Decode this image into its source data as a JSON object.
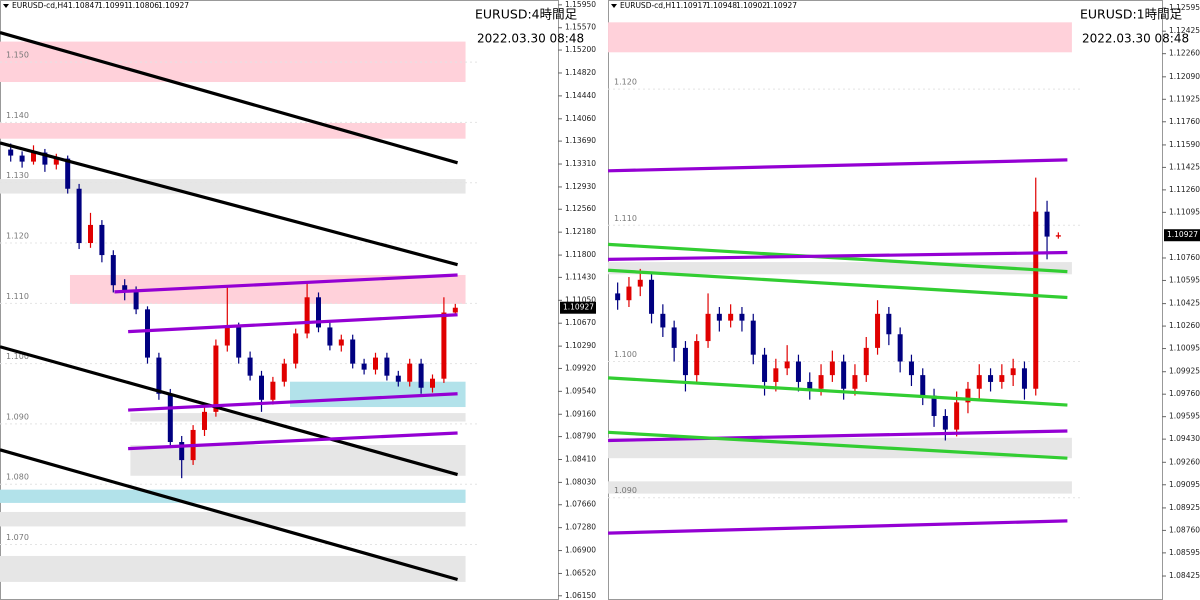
{
  "chart_data": [
    {
      "type": "candlestick",
      "symbol": "EURUSD-cd,H4",
      "title": "EURUSD:4時間足",
      "subtitle": "2022.03.30 08:48",
      "up_color": "#e00000",
      "down_color": "#000080",
      "ylim": [
        1.1603,
        1.0608
      ],
      "yticks": [
        {
          "value": 1.1595,
          "label": "1.15950"
        },
        {
          "value": 1.1557,
          "label": "1.15570"
        },
        {
          "value": 1.152,
          "label": "1.15200"
        },
        {
          "value": 1.1482,
          "label": "1.14820"
        },
        {
          "value": 1.1444,
          "label": "1.14440"
        },
        {
          "value": 1.1406,
          "label": "1.14060"
        },
        {
          "value": 1.1369,
          "label": "1.13690"
        },
        {
          "value": 1.1331,
          "label": "1.13310"
        },
        {
          "value": 1.1293,
          "label": "1.12930"
        },
        {
          "value": 1.1256,
          "label": "1.12560"
        },
        {
          "value": 1.1218,
          "label": "1.12180"
        },
        {
          "value": 1.118,
          "label": "1.11800"
        },
        {
          "value": 1.1143,
          "label": "1.11430"
        },
        {
          "value": 1.1105,
          "label": "1.11050"
        },
        {
          "value": 1.1067,
          "label": "1.10670"
        },
        {
          "value": 1.1029,
          "label": "1.10290"
        },
        {
          "value": 1.0992,
          "label": "1.09920"
        },
        {
          "value": 1.0954,
          "label": "1.09540"
        },
        {
          "value": 1.0916,
          "label": "1.09160"
        },
        {
          "value": 1.0879,
          "label": "1.08790"
        },
        {
          "value": 1.0841,
          "label": "1.08410"
        },
        {
          "value": 1.0803,
          "label": "1.08030"
        },
        {
          "value": 1.0766,
          "label": "1.07660"
        },
        {
          "value": 1.0728,
          "label": "1.07280"
        },
        {
          "value": 1.069,
          "label": "1.06900"
        },
        {
          "value": 1.0652,
          "label": "1.06520"
        },
        {
          "value": 1.0615,
          "label": "1.06150"
        }
      ],
      "levels": [
        {
          "value": 1.15,
          "label": "1.150"
        },
        {
          "value": 1.14,
          "label": "1.140"
        },
        {
          "value": 1.13,
          "label": "1.130"
        },
        {
          "value": 1.12,
          "label": "1.120"
        },
        {
          "value": 1.11,
          "label": "1.110"
        },
        {
          "value": 1.1,
          "label": "1.100"
        },
        {
          "value": 1.09,
          "label": "1.090"
        },
        {
          "value": 1.08,
          "label": "1.080"
        },
        {
          "value": 1.07,
          "label": "1.070"
        }
      ],
      "open": [
        1.1355,
        1.1345,
        1.1335,
        1.135,
        1.133,
        1.134,
        1.129,
        1.12,
        1.123,
        1.118,
        1.113,
        1.112,
        1.109,
        1.101,
        1.095,
        1.087,
        1.084,
        1.089,
        1.092,
        1.103,
        1.106,
        1.101,
        1.098,
        1.094,
        1.097,
        1.1,
        1.105,
        1.111,
        1.106,
        1.103,
        1.104,
        1.1,
        1.099,
        1.101,
        1.098,
        1.097,
        1.1,
        1.096,
        1.0975,
        1.10847
      ],
      "high": [
        1.1365,
        1.1352,
        1.1362,
        1.1356,
        1.1348,
        1.1345,
        1.1298,
        1.125,
        1.1238,
        1.1188,
        1.114,
        1.1128,
        1.1095,
        1.1018,
        1.0958,
        1.088,
        1.0898,
        1.093,
        1.104,
        1.113,
        1.1068,
        1.102,
        1.0988,
        1.0978,
        1.1008,
        1.1058,
        1.1135,
        1.1118,
        1.1068,
        1.1048,
        1.1048,
        1.1008,
        1.1018,
        1.1018,
        1.0988,
        1.1008,
        1.1008,
        1.0982,
        1.111,
        1.10991
      ],
      "low": [
        1.1335,
        1.1325,
        1.133,
        1.1318,
        1.1322,
        1.1282,
        1.119,
        1.1192,
        1.1168,
        1.1118,
        1.1105,
        1.1082,
        1.1,
        1.094,
        1.086,
        1.081,
        1.0832,
        1.088,
        1.0912,
        1.102,
        1.1,
        1.0972,
        1.092,
        1.0932,
        1.0962,
        1.0992,
        1.1042,
        1.1052,
        1.1022,
        1.102,
        1.0992,
        1.0982,
        1.0982,
        1.0972,
        1.0962,
        1.0962,
        1.095,
        1.0952,
        1.0968,
        1.10806
      ],
      "close": [
        1.1345,
        1.1335,
        1.135,
        1.133,
        1.134,
        1.129,
        1.12,
        1.123,
        1.118,
        1.113,
        1.112,
        1.109,
        1.101,
        1.095,
        1.087,
        1.084,
        1.089,
        1.092,
        1.103,
        1.106,
        1.101,
        1.098,
        1.094,
        1.097,
        1.1,
        1.105,
        1.111,
        1.106,
        1.103,
        1.104,
        1.1,
        1.099,
        1.101,
        1.098,
        1.097,
        1.1,
        1.096,
        1.0975,
        1.10847,
        1.10927
      ],
      "zones": [
        {
          "low": 1.1467,
          "high": 1.1534,
          "start": -0.44,
          "end": 40.4,
          "color": "#ffd1da"
        },
        {
          "low": 1.1373,
          "high": 1.1399,
          "start": -0.44,
          "end": 40.4,
          "color": "#ffd1da"
        },
        {
          "low": 1.1282,
          "high": 1.1306,
          "start": -0.44,
          "end": 40.4,
          "color": "#e6e6e6"
        },
        {
          "low": 1.1099,
          "high": 1.1147,
          "start": 5.7,
          "end": 40.4,
          "color": "#ffd1da"
        },
        {
          "low": 1.0928,
          "high": 1.097,
          "start": 25,
          "end": 40.4,
          "color": "#b2e2ea"
        },
        {
          "low": 1.0904,
          "high": 1.0918,
          "start": 11,
          "end": 40.4,
          "color": "#e6e6e6"
        },
        {
          "low": 1.0814,
          "high": 1.0865,
          "start": 11,
          "end": 40.4,
          "color": "#e6e6e6"
        },
        {
          "low": 1.0769,
          "high": 1.0791,
          "start": -0.44,
          "end": 40.4,
          "color": "#b2e2ea"
        },
        {
          "low": 1.073,
          "high": 1.0754,
          "start": -0.44,
          "end": 40.4,
          "color": "#e6e6e6"
        },
        {
          "low": 1.0638,
          "high": 1.0681,
          "start": -0.44,
          "end": 40.4,
          "color": "#e6e6e6"
        }
      ],
      "trendlines": [
        {
          "from": [
            -0.44,
            1.1549
          ],
          "to": [
            39.7,
            1.1333
          ],
          "color": "#000000"
        },
        {
          "from": [
            -0.44,
            1.1366
          ],
          "to": [
            39.7,
            1.1164
          ],
          "color": "#000000"
        },
        {
          "from": [
            -0.44,
            1.1028
          ],
          "to": [
            39.7,
            1.0816
          ],
          "color": "#000000"
        },
        {
          "from": [
            -0.44,
            1.0857
          ],
          "to": [
            39.7,
            1.0642
          ],
          "color": "#000000"
        },
        {
          "from": [
            9.6,
            1.1119
          ],
          "to": [
            39.7,
            1.1147
          ],
          "color": "#9400d3"
        },
        {
          "from": [
            10.8,
            1.1053
          ],
          "to": [
            39.7,
            1.1081
          ],
          "color": "#9400d3"
        },
        {
          "from": [
            10.8,
            1.0923
          ],
          "to": [
            39.7,
            1.095
          ],
          "color": "#9400d3"
        },
        {
          "from": [
            10.8,
            1.0859
          ],
          "to": [
            39.7,
            1.0885
          ],
          "color": "#9400d3"
        }
      ]
    },
    {
      "type": "candlestick",
      "symbol": "EURUSD-cd,H1",
      "title": "EURUSD:1時間足",
      "subtitle": "2022.03.30 08:48",
      "up_color": "#e00000",
      "down_color": "#000080",
      "ylim": [
        1.12654,
        1.08249
      ],
      "yticks": [
        {
          "value": 1.12595,
          "label": "1.12595"
        },
        {
          "value": 1.12425,
          "label": "1.12425"
        },
        {
          "value": 1.1226,
          "label": "1.12260"
        },
        {
          "value": 1.1209,
          "label": "1.12090"
        },
        {
          "value": 1.11925,
          "label": "1.11925"
        },
        {
          "value": 1.1176,
          "label": "1.11760"
        },
        {
          "value": 1.1159,
          "label": "1.11590"
        },
        {
          "value": 1.11425,
          "label": "1.11425"
        },
        {
          "value": 1.1126,
          "label": "1.11260"
        },
        {
          "value": 1.11095,
          "label": "1.11095"
        },
        {
          "value": 1.1076,
          "label": "1.10760"
        },
        {
          "value": 1.10595,
          "label": "1.10595"
        },
        {
          "value": 1.10425,
          "label": "1.10425"
        },
        {
          "value": 1.1026,
          "label": "1.10260"
        },
        {
          "value": 1.10095,
          "label": "1.10095"
        },
        {
          "value": 1.09925,
          "label": "1.09925"
        },
        {
          "value": 1.0976,
          "label": "1.09760"
        },
        {
          "value": 1.09595,
          "label": "1.09595"
        },
        {
          "value": 1.0943,
          "label": "1.09430"
        },
        {
          "value": 1.0926,
          "label": "1.09260"
        },
        {
          "value": 1.09095,
          "label": "1.09095"
        },
        {
          "value": 1.08925,
          "label": "1.08925"
        },
        {
          "value": 1.0876,
          "label": "1.08760"
        },
        {
          "value": 1.08595,
          "label": "1.08595"
        },
        {
          "value": 1.08425,
          "label": "1.08425"
        }
      ],
      "levels": [
        {
          "value": 1.12,
          "label": "1.120"
        },
        {
          "value": 1.11,
          "label": "1.110"
        },
        {
          "value": 1.1,
          "label": "1.100"
        },
        {
          "value": 1.09,
          "label": "1.090"
        }
      ],
      "open": [
        1.105,
        1.1045,
        1.1055,
        1.106,
        1.1035,
        1.1025,
        1.101,
        1.099,
        1.1015,
        1.1035,
        1.103,
        1.1035,
        1.103,
        1.1005,
        1.0985,
        1.0995,
        1.1,
        1.0985,
        1.098,
        1.099,
        1.1,
        1.098,
        1.099,
        1.101,
        1.1035,
        1.102,
        1.1,
        1.099,
        1.0975,
        1.096,
        1.095,
        1.097,
        1.098,
        1.099,
        1.0985,
        1.099,
        1.0995,
        1.098,
        1.111,
        1.10917
      ],
      "high": [
        1.1058,
        1.1062,
        1.1068,
        1.1065,
        1.1042,
        1.103,
        1.1015,
        1.102,
        1.105,
        1.104,
        1.1042,
        1.104,
        1.1035,
        1.101,
        1.1002,
        1.1012,
        1.1005,
        1.0992,
        1.0998,
        1.1008,
        1.1005,
        1.0998,
        1.1018,
        1.1045,
        1.104,
        1.1025,
        1.1005,
        1.0995,
        1.098,
        1.0965,
        1.0978,
        1.0985,
        1.0998,
        1.0995,
        1.0998,
        1.1002,
        1.1,
        1.1135,
        1.1118,
        1.10948
      ],
      "low": [
        1.1038,
        1.104,
        1.1048,
        1.1028,
        1.1018,
        1.1,
        1.0978,
        1.0985,
        1.101,
        1.1022,
        1.1025,
        1.1022,
        1.0998,
        1.0975,
        1.0978,
        1.099,
        1.0978,
        1.0972,
        1.0975,
        1.0985,
        1.0972,
        1.0975,
        1.0985,
        1.1005,
        1.1012,
        1.0992,
        1.0982,
        1.0968,
        1.0952,
        1.0942,
        1.0945,
        1.0962,
        1.0972,
        1.0978,
        1.098,
        1.0982,
        1.0972,
        1.0975,
        1.1075,
        1.10902
      ],
      "close": [
        1.1045,
        1.1055,
        1.106,
        1.1035,
        1.1025,
        1.101,
        1.099,
        1.1015,
        1.1035,
        1.103,
        1.1035,
        1.103,
        1.1005,
        1.0985,
        1.0995,
        1.1,
        1.0985,
        1.098,
        1.099,
        1.1,
        1.098,
        1.099,
        1.101,
        1.1035,
        1.102,
        1.1,
        1.099,
        1.0975,
        1.096,
        1.095,
        1.097,
        1.098,
        1.099,
        1.0985,
        1.099,
        1.0995,
        1.098,
        1.111,
        1.10917,
        1.10927
      ],
      "zones": [
        {
          "low": 1.1227,
          "high": 1.1249,
          "start": -0.35,
          "end": 40.7,
          "color": "#ffd1da"
        },
        {
          "low": 1.1064,
          "high": 1.1073,
          "start": -0.35,
          "end": 40.7,
          "color": "#e6e6e6"
        },
        {
          "low": 1.0929,
          "high": 1.0944,
          "start": -0.35,
          "end": 40.7,
          "color": "#e6e6e6"
        },
        {
          "low": 1.0903,
          "high": 1.0912,
          "start": -0.35,
          "end": 40.7,
          "color": "#e6e6e6"
        }
      ],
      "trendlines": [
        {
          "from": [
            -0.35,
            1.114
          ],
          "to": [
            40.3,
            1.1148
          ],
          "color": "#9400d3"
        },
        {
          "from": [
            -0.35,
            1.1086
          ],
          "to": [
            40.3,
            1.1066
          ],
          "color": "#32cd32"
        },
        {
          "from": [
            -0.35,
            1.1075
          ],
          "to": [
            40.3,
            1.108
          ],
          "color": "#9400d3"
        },
        {
          "from": [
            -0.35,
            1.1067
          ],
          "to": [
            40.3,
            1.1047
          ],
          "color": "#32cd32"
        },
        {
          "from": [
            -0.35,
            1.0988
          ],
          "to": [
            40.3,
            1.0968
          ],
          "color": "#32cd32"
        },
        {
          "from": [
            -0.35,
            1.0942
          ],
          "to": [
            40.3,
            1.0949
          ],
          "color": "#9400d3"
        },
        {
          "from": [
            -0.35,
            1.0948
          ],
          "to": [
            40.3,
            1.0929
          ],
          "color": "#32cd32"
        },
        {
          "from": [
            -0.35,
            1.0874
          ],
          "to": [
            40.3,
            1.0883
          ],
          "color": "#9400d3"
        }
      ]
    }
  ]
}
